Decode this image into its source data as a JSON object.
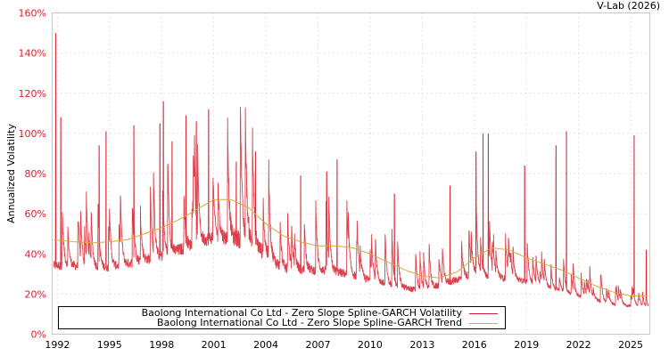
{
  "header": {
    "credit": "V-Lab (2026)"
  },
  "legend": {
    "items": [
      {
        "label": "Baolong International Co Ltd - Zero Slope Spline-GARCH Volatility",
        "color": "#d7202e"
      },
      {
        "label": "Baolong International Co Ltd - Zero Slope Spline-GARCH Trend",
        "color": "#d9a93a"
      }
    ]
  },
  "colors": {
    "axis_tick_label_y": "#d7202e",
    "axis_tick_label_x": "#000000",
    "grid": "#c8c8c8",
    "frame": "#c8c8c8"
  },
  "chart_data": {
    "type": "line",
    "title": "",
    "xlabel": "",
    "ylabel": "Annualized Volatility",
    "ylim": [
      0,
      160
    ],
    "xlim": [
      1991.7,
      2026.1
    ],
    "y_ticks": [
      "0%",
      "20%",
      "40%",
      "60%",
      "80%",
      "100%",
      "120%",
      "140%",
      "160%"
    ],
    "x_ticks": [
      "1992",
      "1995",
      "1998",
      "2001",
      "2004",
      "2007",
      "2010",
      "2013",
      "2016",
      "2019",
      "2022",
      "2025"
    ],
    "grid": true,
    "legend_position": "bottom-inside",
    "series": [
      {
        "name": "Baolong International Co Ltd - Zero Slope Spline-GARCH Trend",
        "x": [
          1991.8,
          1993,
          1994,
          1995,
          1996,
          1997,
          1998,
          1999,
          2000,
          2001,
          2002,
          2003,
          2004,
          2005,
          2006,
          2007,
          2008,
          2009,
          2010,
          2011,
          2012,
          2013,
          2014,
          2015,
          2016,
          2017,
          2018,
          2019,
          2020,
          2021,
          2022,
          2023,
          2024,
          2025,
          2026
        ],
        "values": [
          47,
          46,
          45.5,
          46,
          47,
          50,
          53,
          57,
          62,
          67,
          67,
          63,
          55,
          49,
          46,
          44,
          44,
          43,
          40,
          36,
          32,
          29,
          28,
          31,
          38,
          43,
          42,
          38,
          35,
          32,
          28,
          24,
          21,
          19,
          19
        ]
      },
      {
        "name": "Baolong International Co Ltd - Zero Slope Spline-GARCH Volatility",
        "baseline_by_year": [
          {
            "x": 1992,
            "low": 32,
            "typical": 45
          },
          {
            "x": 1995,
            "low": 31,
            "typical": 43
          },
          {
            "x": 1998,
            "low": 36,
            "typical": 52
          },
          {
            "x": 2001,
            "low": 45,
            "typical": 65
          },
          {
            "x": 2003,
            "low": 42,
            "typical": 70
          },
          {
            "x": 2005,
            "low": 30,
            "typical": 45
          },
          {
            "x": 2008,
            "low": 29,
            "typical": 42
          },
          {
            "x": 2011,
            "low": 23,
            "typical": 33
          },
          {
            "x": 2013,
            "low": 20,
            "typical": 28
          },
          {
            "x": 2016,
            "low": 28,
            "typical": 40
          },
          {
            "x": 2019,
            "low": 25,
            "typical": 32
          },
          {
            "x": 2022,
            "low": 18,
            "typical": 24
          },
          {
            "x": 2024,
            "low": 14,
            "typical": 18
          },
          {
            "x": 2026,
            "low": 13,
            "typical": 16
          }
        ],
        "peaks": [
          {
            "x": 1991.9,
            "value": 150
          },
          {
            "x": 1992.2,
            "value": 108
          },
          {
            "x": 1994.4,
            "value": 94
          },
          {
            "x": 1994.8,
            "value": 101
          },
          {
            "x": 1996.4,
            "value": 104
          },
          {
            "x": 1997.9,
            "value": 105
          },
          {
            "x": 1998.1,
            "value": 116
          },
          {
            "x": 1998.6,
            "value": 96
          },
          {
            "x": 1999.4,
            "value": 109
          },
          {
            "x": 2000.0,
            "value": 106
          },
          {
            "x": 2000.7,
            "value": 112
          },
          {
            "x": 2002.3,
            "value": 86
          },
          {
            "x": 2003.4,
            "value": 91
          },
          {
            "x": 2006.0,
            "value": 79
          },
          {
            "x": 2007.5,
            "value": 81
          },
          {
            "x": 2008.1,
            "value": 87
          },
          {
            "x": 2011.4,
            "value": 70
          },
          {
            "x": 2014.6,
            "value": 74
          },
          {
            "x": 2016.1,
            "value": 91
          },
          {
            "x": 2016.5,
            "value": 100
          },
          {
            "x": 2016.8,
            "value": 100
          },
          {
            "x": 2018.9,
            "value": 84
          },
          {
            "x": 2020.7,
            "value": 94
          },
          {
            "x": 2021.3,
            "value": 101
          },
          {
            "x": 2025.2,
            "value": 99
          },
          {
            "x": 2025.9,
            "value": 42
          }
        ],
        "last_value": 14
      }
    ]
  }
}
